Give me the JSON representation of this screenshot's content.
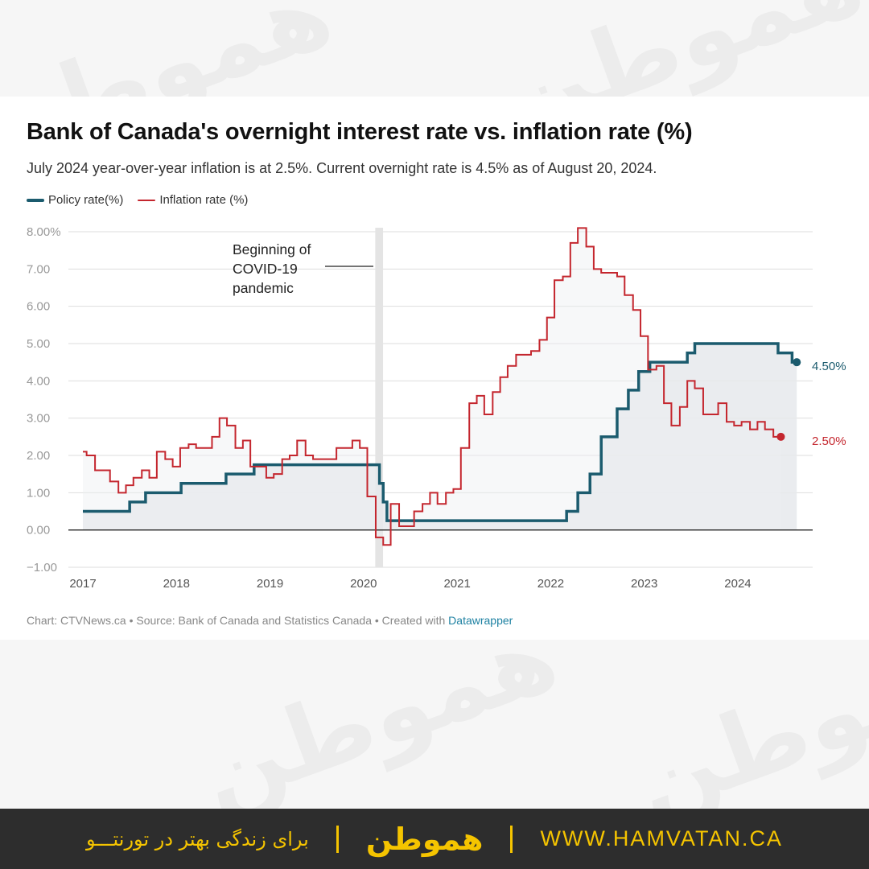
{
  "title": "Bank of Canada's overnight interest rate vs. inflation rate (%)",
  "subtitle": "July 2024 year-over-year inflation is at 2.5%. Current overnight rate is 4.5% as of August 20, 2024.",
  "footer": {
    "prefix": "Chart: CTVNews.ca • Source: Bank of Canada and Statistics Canada • Created with ",
    "link": "Datawrapper"
  },
  "brand": {
    "watermark": "هموطن",
    "logo": "هموطن",
    "tagline": "برای زندگی بهتر در تورنتـــو",
    "url": "WWW.HAMVATAN.CA"
  },
  "colors": {
    "policy": "#1b5b6e",
    "inflation": "#c4262e",
    "area": "#e6e9ec",
    "grid": "#dddddd",
    "covid_band": "#e4e4e4",
    "brand_yellow": "#f5c400"
  },
  "chart_data": {
    "type": "line",
    "step": true,
    "x_unit": "year",
    "xlim": [
      2017,
      2024.8
    ],
    "ylim": [
      -1,
      8
    ],
    "y_ticks": [
      -1,
      0,
      1,
      2,
      3,
      4,
      5,
      6,
      7,
      8
    ],
    "y_tick_labels": [
      "−1.00",
      "0.00",
      "1.00",
      "2.00",
      "3.00",
      "4.00",
      "5.00",
      "6.00",
      "7.00",
      "8.00%"
    ],
    "x_ticks": [
      2017,
      2018,
      2019,
      2020,
      2021,
      2022,
      2023,
      2024
    ],
    "x_tick_labels": [
      "2017",
      "2018",
      "2019",
      "2020",
      "2021",
      "2022",
      "2023",
      "2024"
    ],
    "grid": true,
    "legend_position": "top-left",
    "annotation": {
      "text": [
        "Beginning of",
        "COVID-19",
        "pandemic"
      ],
      "x_start": 2020.125,
      "x_end": 2020.208
    },
    "series": [
      {
        "name": "Policy rate(%)",
        "color": "#1b5b6e",
        "end_label": "4.50%",
        "points": [
          [
            2017.0,
            0.5
          ],
          [
            2017.5,
            0.5
          ],
          [
            2017.5,
            0.75
          ],
          [
            2017.67,
            0.75
          ],
          [
            2017.67,
            1.0
          ],
          [
            2018.05,
            1.0
          ],
          [
            2018.05,
            1.25
          ],
          [
            2018.53,
            1.25
          ],
          [
            2018.53,
            1.5
          ],
          [
            2018.83,
            1.5
          ],
          [
            2018.83,
            1.75
          ],
          [
            2020.17,
            1.75
          ],
          [
            2020.17,
            1.25
          ],
          [
            2020.21,
            1.25
          ],
          [
            2020.21,
            0.75
          ],
          [
            2020.25,
            0.75
          ],
          [
            2020.25,
            0.25
          ],
          [
            2022.17,
            0.25
          ],
          [
            2022.17,
            0.5
          ],
          [
            2022.29,
            0.5
          ],
          [
            2022.29,
            1.0
          ],
          [
            2022.42,
            1.0
          ],
          [
            2022.42,
            1.5
          ],
          [
            2022.54,
            1.5
          ],
          [
            2022.54,
            2.5
          ],
          [
            2022.71,
            2.5
          ],
          [
            2022.71,
            3.25
          ],
          [
            2022.83,
            3.25
          ],
          [
            2022.83,
            3.75
          ],
          [
            2022.94,
            3.75
          ],
          [
            2022.94,
            4.25
          ],
          [
            2023.06,
            4.25
          ],
          [
            2023.06,
            4.5
          ],
          [
            2023.46,
            4.5
          ],
          [
            2023.46,
            4.75
          ],
          [
            2023.54,
            4.75
          ],
          [
            2023.54,
            5.0
          ],
          [
            2024.43,
            5.0
          ],
          [
            2024.43,
            4.75
          ],
          [
            2024.58,
            4.75
          ],
          [
            2024.58,
            4.5
          ],
          [
            2024.63,
            4.5
          ]
        ]
      },
      {
        "name": "Inflation rate (%)",
        "color": "#c4262e",
        "end_label": "2.50%",
        "points": [
          [
            2017.0,
            2.1
          ],
          [
            2017.04,
            2.1
          ],
          [
            2017.04,
            2.0
          ],
          [
            2017.13,
            2.0
          ],
          [
            2017.13,
            1.6
          ],
          [
            2017.29,
            1.6
          ],
          [
            2017.29,
            1.3
          ],
          [
            2017.38,
            1.3
          ],
          [
            2017.38,
            1.0
          ],
          [
            2017.46,
            1.0
          ],
          [
            2017.46,
            1.2
          ],
          [
            2017.54,
            1.2
          ],
          [
            2017.54,
            1.4
          ],
          [
            2017.63,
            1.4
          ],
          [
            2017.63,
            1.6
          ],
          [
            2017.71,
            1.6
          ],
          [
            2017.71,
            1.4
          ],
          [
            2017.79,
            1.4
          ],
          [
            2017.79,
            2.1
          ],
          [
            2017.88,
            2.1
          ],
          [
            2017.88,
            1.9
          ],
          [
            2017.96,
            1.9
          ],
          [
            2017.96,
            1.7
          ],
          [
            2018.04,
            1.7
          ],
          [
            2018.04,
            2.2
          ],
          [
            2018.13,
            2.2
          ],
          [
            2018.13,
            2.3
          ],
          [
            2018.21,
            2.3
          ],
          [
            2018.21,
            2.2
          ],
          [
            2018.38,
            2.2
          ],
          [
            2018.38,
            2.5
          ],
          [
            2018.46,
            2.5
          ],
          [
            2018.46,
            3.0
          ],
          [
            2018.54,
            3.0
          ],
          [
            2018.54,
            2.8
          ],
          [
            2018.63,
            2.8
          ],
          [
            2018.63,
            2.2
          ],
          [
            2018.71,
            2.2
          ],
          [
            2018.71,
            2.4
          ],
          [
            2018.79,
            2.4
          ],
          [
            2018.79,
            1.7
          ],
          [
            2018.96,
            1.7
          ],
          [
            2018.96,
            1.4
          ],
          [
            2019.04,
            1.4
          ],
          [
            2019.04,
            1.5
          ],
          [
            2019.13,
            1.5
          ],
          [
            2019.13,
            1.9
          ],
          [
            2019.21,
            1.9
          ],
          [
            2019.21,
            2.0
          ],
          [
            2019.29,
            2.0
          ],
          [
            2019.29,
            2.4
          ],
          [
            2019.38,
            2.4
          ],
          [
            2019.38,
            2.0
          ],
          [
            2019.46,
            2.0
          ],
          [
            2019.46,
            1.9
          ],
          [
            2019.71,
            1.9
          ],
          [
            2019.71,
            2.2
          ],
          [
            2019.88,
            2.2
          ],
          [
            2019.88,
            2.4
          ],
          [
            2019.96,
            2.4
          ],
          [
            2019.96,
            2.2
          ],
          [
            2020.04,
            2.2
          ],
          [
            2020.04,
            0.9
          ],
          [
            2020.13,
            0.9
          ],
          [
            2020.13,
            -0.2
          ],
          [
            2020.21,
            -0.2
          ],
          [
            2020.21,
            -0.4
          ],
          [
            2020.29,
            -0.4
          ],
          [
            2020.29,
            0.7
          ],
          [
            2020.38,
            0.7
          ],
          [
            2020.38,
            0.1
          ],
          [
            2020.54,
            0.1
          ],
          [
            2020.54,
            0.5
          ],
          [
            2020.63,
            0.5
          ],
          [
            2020.63,
            0.7
          ],
          [
            2020.71,
            0.7
          ],
          [
            2020.71,
            1.0
          ],
          [
            2020.79,
            1.0
          ],
          [
            2020.79,
            0.7
          ],
          [
            2020.88,
            0.7
          ],
          [
            2020.88,
            1.0
          ],
          [
            2020.96,
            1.0
          ],
          [
            2020.96,
            1.1
          ],
          [
            2021.04,
            1.1
          ],
          [
            2021.04,
            2.2
          ],
          [
            2021.13,
            2.2
          ],
          [
            2021.13,
            3.4
          ],
          [
            2021.21,
            3.4
          ],
          [
            2021.21,
            3.6
          ],
          [
            2021.29,
            3.6
          ],
          [
            2021.29,
            3.1
          ],
          [
            2021.38,
            3.1
          ],
          [
            2021.38,
            3.7
          ],
          [
            2021.46,
            3.7
          ],
          [
            2021.46,
            4.1
          ],
          [
            2021.54,
            4.1
          ],
          [
            2021.54,
            4.4
          ],
          [
            2021.63,
            4.4
          ],
          [
            2021.63,
            4.7
          ],
          [
            2021.79,
            4.7
          ],
          [
            2021.79,
            4.8
          ],
          [
            2021.88,
            4.8
          ],
          [
            2021.88,
            5.1
          ],
          [
            2021.96,
            5.1
          ],
          [
            2021.96,
            5.7
          ],
          [
            2022.04,
            5.7
          ],
          [
            2022.04,
            6.7
          ],
          [
            2022.13,
            6.7
          ],
          [
            2022.13,
            6.8
          ],
          [
            2022.21,
            6.8
          ],
          [
            2022.21,
            7.7
          ],
          [
            2022.29,
            7.7
          ],
          [
            2022.29,
            8.1
          ],
          [
            2022.38,
            8.1
          ],
          [
            2022.38,
            7.6
          ],
          [
            2022.46,
            7.6
          ],
          [
            2022.46,
            7.0
          ],
          [
            2022.54,
            7.0
          ],
          [
            2022.54,
            6.9
          ],
          [
            2022.71,
            6.9
          ],
          [
            2022.71,
            6.8
          ],
          [
            2022.79,
            6.8
          ],
          [
            2022.79,
            6.3
          ],
          [
            2022.88,
            6.3
          ],
          [
            2022.88,
            5.9
          ],
          [
            2022.96,
            5.9
          ],
          [
            2022.96,
            5.2
          ],
          [
            2023.04,
            5.2
          ],
          [
            2023.04,
            4.3
          ],
          [
            2023.13,
            4.3
          ],
          [
            2023.13,
            4.4
          ],
          [
            2023.21,
            4.4
          ],
          [
            2023.21,
            3.4
          ],
          [
            2023.29,
            3.4
          ],
          [
            2023.29,
            2.8
          ],
          [
            2023.38,
            2.8
          ],
          [
            2023.38,
            3.3
          ],
          [
            2023.46,
            3.3
          ],
          [
            2023.46,
            4.0
          ],
          [
            2023.54,
            4.0
          ],
          [
            2023.54,
            3.8
          ],
          [
            2023.63,
            3.8
          ],
          [
            2023.63,
            3.1
          ],
          [
            2023.79,
            3.1
          ],
          [
            2023.79,
            3.4
          ],
          [
            2023.88,
            3.4
          ],
          [
            2023.88,
            2.9
          ],
          [
            2023.96,
            2.9
          ],
          [
            2023.96,
            2.8
          ],
          [
            2024.04,
            2.8
          ],
          [
            2024.04,
            2.9
          ],
          [
            2024.13,
            2.9
          ],
          [
            2024.13,
            2.7
          ],
          [
            2024.21,
            2.7
          ],
          [
            2024.21,
            2.9
          ],
          [
            2024.29,
            2.9
          ],
          [
            2024.29,
            2.7
          ],
          [
            2024.38,
            2.7
          ],
          [
            2024.38,
            2.5
          ],
          [
            2024.46,
            2.5
          ]
        ]
      }
    ]
  }
}
